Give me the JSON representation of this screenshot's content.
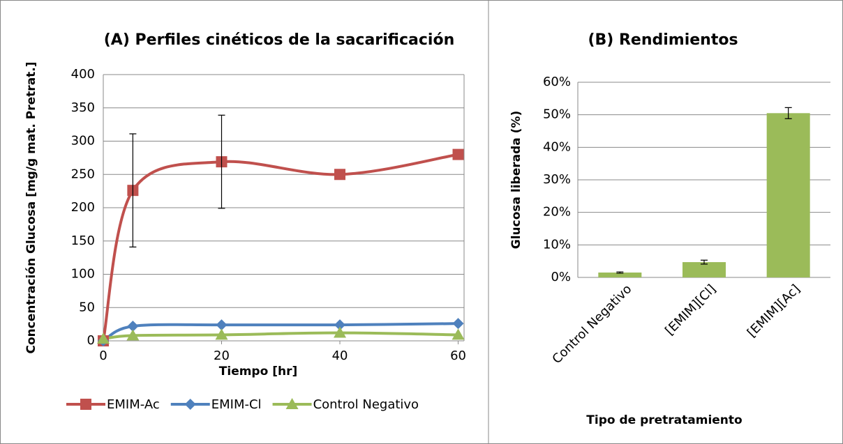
{
  "chart_data": [
    {
      "type": "line",
      "title": "(A) Perfiles cinéticos de la sacarificación",
      "xlabel": "Tiempo [hr]",
      "ylabel": "Concentración Glucosa [mg/g mat. Pretrat.]",
      "x": [
        0,
        5,
        20,
        40,
        60
      ],
      "xlim": [
        0,
        61
      ],
      "xticks": [
        0,
        20,
        40,
        60
      ],
      "ylim": [
        0,
        400
      ],
      "yticks": [
        0,
        50,
        100,
        150,
        200,
        250,
        300,
        350,
        400
      ],
      "grid": true,
      "legend": "bottom",
      "series": [
        {
          "name": "EMIM-Ac",
          "color": "#c0504d",
          "marker": "square",
          "values": [
            0,
            226,
            269,
            250,
            280
          ],
          "errors": [
            null,
            85,
            70,
            null,
            null
          ]
        },
        {
          "name": "EMIM-Cl",
          "color": "#4f81bd",
          "marker": "diamond",
          "values": [
            0,
            22,
            24,
            24,
            26
          ]
        },
        {
          "name": "Control Negativo",
          "color": "#9bbb59",
          "marker": "triangle",
          "values": [
            3,
            8,
            9,
            12,
            9
          ]
        }
      ]
    },
    {
      "type": "bar",
      "title": "(B) Rendimientos",
      "xlabel": "Tipo de pretratamiento",
      "ylabel": "Glucosa liberada (%)",
      "categories": [
        "Control Negativo",
        "[EMIM][Cl]",
        "[EMIM][Ac]"
      ],
      "values": [
        1.5,
        4.7,
        50.5
      ],
      "errors": [
        0.2,
        0.6,
        1.7
      ],
      "color": "#9bbb59",
      "ylim": [
        0,
        60
      ],
      "yticks": [
        {
          "value": 0,
          "label": "0%"
        },
        {
          "value": 10,
          "label": "10%"
        },
        {
          "value": 20,
          "label": "20%"
        },
        {
          "value": 30,
          "label": "30%"
        },
        {
          "value": 40,
          "label": "40%"
        },
        {
          "value": 50,
          "label": "50%"
        },
        {
          "value": 60,
          "label": "60%"
        }
      ],
      "grid": true
    }
  ]
}
